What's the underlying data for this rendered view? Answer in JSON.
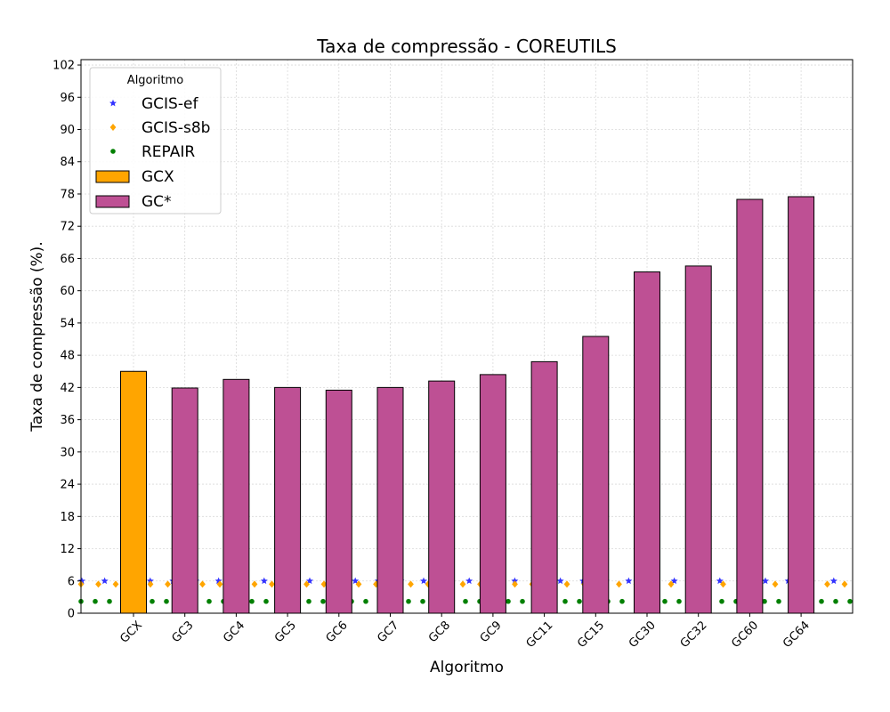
{
  "chart_data": {
    "type": "bar",
    "title": "Taxa de compressão -  COREUTILS",
    "xlabel": "Algoritmo",
    "ylabel": "Taxa de compressão (%).",
    "ylim": [
      0,
      103
    ],
    "yticks": [
      0,
      6,
      12,
      18,
      24,
      30,
      36,
      42,
      48,
      54,
      60,
      66,
      72,
      78,
      84,
      90,
      96,
      102
    ],
    "grid": true,
    "legend_title": "Algoritmo",
    "legend_placement": "top-left",
    "categories": [
      "GCX",
      "GC3",
      "GC4",
      "GC5",
      "GC6",
      "GC7",
      "GC8",
      "GC9",
      "GC11",
      "GC15",
      "GC30",
      "GC32",
      "GC60",
      "GC64"
    ],
    "bars": [
      {
        "name": "GCX",
        "color": "#FFA500",
        "categories": [
          "GCX"
        ],
        "values": [
          45.0
        ]
      },
      {
        "name": "GC*",
        "color": "#BE5094",
        "categories": [
          "GC3",
          "GC4",
          "GC5",
          "GC6",
          "GC7",
          "GC8",
          "GC9",
          "GC11",
          "GC15",
          "GC30",
          "GC32",
          "GC60",
          "GC64"
        ],
        "values": [
          41.9,
          43.5,
          42.0,
          41.5,
          42.0,
          43.2,
          44.4,
          46.8,
          51.5,
          63.5,
          64.6,
          77.0,
          77.5
        ]
      }
    ],
    "reference_lines": [
      {
        "name": "GCIS-ef",
        "value": 6.0,
        "color": "#3333FF",
        "marker": "star"
      },
      {
        "name": "GCIS-s8b",
        "value": 5.4,
        "color": "#FFA500",
        "marker": "diamond"
      },
      {
        "name": "REPAIR",
        "value": 2.2,
        "color": "#008000",
        "marker": "circle"
      }
    ]
  }
}
